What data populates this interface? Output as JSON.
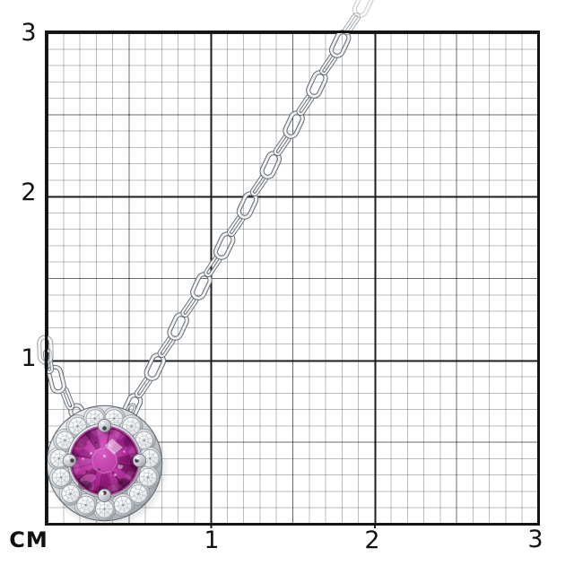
{
  "ruler": {
    "unit_label": "CM",
    "unit": "cm",
    "y_axis_labels": [
      "3",
      "2",
      "1"
    ],
    "x_axis_labels": [
      "1",
      "2",
      "3"
    ],
    "major_divisions": 3,
    "minor_per_major": 10
  },
  "photo": {
    "subject": "white-gold halo pendant necklace with round purple gemstone on anchor-link chain, photographed on centimeter grid paper",
    "pendant_diameter_cm": 0.7,
    "stone_diameter_cm": 0.4,
    "halo_stone_count": 15,
    "prong_count": 4
  },
  "colors": {
    "background": "#ffffff",
    "grid_minor": "#bdbdbd",
    "grid_medium": "#8c8c8c",
    "grid_major": "#1f1f1f",
    "grid_border": "#141414",
    "label_text": "#111111",
    "stone_purple": "#a1218b",
    "stone_highlight": "#e879d2",
    "metal_silver": "#d9dde0",
    "metal_shadow": "#6f757b",
    "chain_outline": "#5d646b"
  }
}
